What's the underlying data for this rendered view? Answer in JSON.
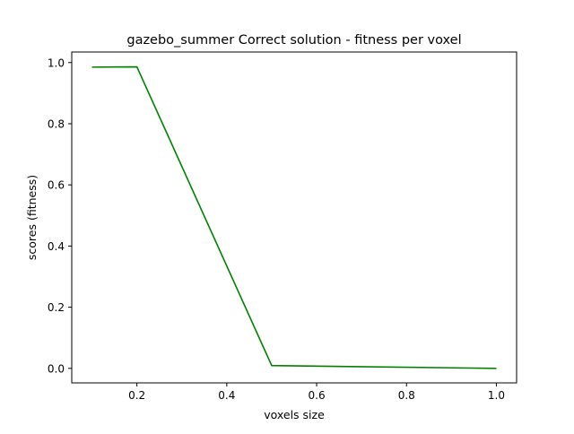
{
  "chart_data": {
    "type": "line",
    "title": "gazebo_summer Correct solution - fitness per voxel",
    "xlabel": "voxels size",
    "ylabel": "scores (fitness)",
    "xlim": [
      0.055,
      1.045
    ],
    "ylim": [
      -0.0475,
      1.0345
    ],
    "xticks": [
      0.2,
      0.4,
      0.6,
      0.8,
      1.0
    ],
    "xtick_labels": [
      "0.2",
      "0.4",
      "0.6",
      "0.8",
      "1.0"
    ],
    "yticks": [
      0.0,
      0.2,
      0.4,
      0.6,
      0.8,
      1.0
    ],
    "ytick_labels": [
      "0.0",
      "0.2",
      "0.4",
      "0.6",
      "0.8",
      "1.0"
    ],
    "grid": false,
    "series": [
      {
        "color": "#008000",
        "x": [
          0.1,
          0.2,
          0.5,
          1.0
        ],
        "y": [
          0.985,
          0.986,
          0.009,
          0.0
        ]
      }
    ]
  }
}
